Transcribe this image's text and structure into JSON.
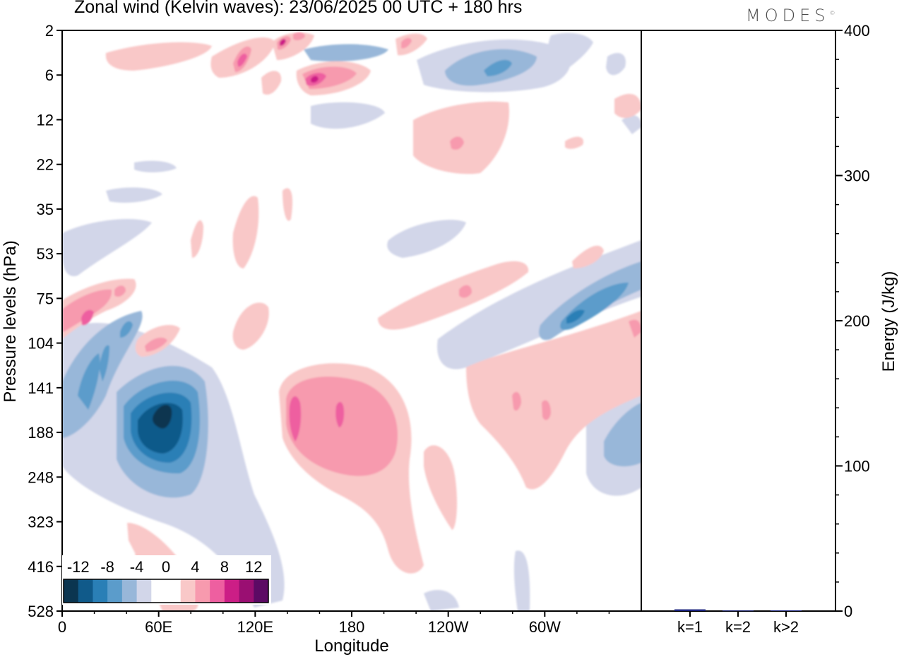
{
  "header": {
    "title": "Zonal wind (Kelvin waves):  23/06/2025  00 UTC  + 180 hrs",
    "brand": "MODES",
    "brand_mark": "©"
  },
  "chart_data": [
    {
      "type": "heatmap",
      "title": "Zonal wind (Kelvin waves):  23/06/2025  00 UTC  + 180 hrs",
      "xlabel": "Longitude",
      "ylabel": "Pressure levels (hPa)",
      "x_ticks": [
        "0",
        "60E",
        "120E",
        "180",
        "120W",
        "60W"
      ],
      "y_ticks": [
        "2",
        "6",
        "12",
        "22",
        "35",
        "53",
        "75",
        "104",
        "141",
        "188",
        "248",
        "323",
        "416",
        "528"
      ],
      "colorbar": {
        "labels": [
          "-12",
          "-8",
          "-4",
          "0",
          "4",
          "8",
          "12"
        ],
        "colors": [
          "#0b3550",
          "#105a8a",
          "#2a7fb6",
          "#5b9ccb",
          "#98b7d9",
          "#d2d6e9",
          "#ffffff",
          "#ffffff",
          "#f9c8c8",
          "#f79aae",
          "#ee5fa0",
          "#cc1e86",
          "#9a0f72",
          "#5c0a64"
        ]
      },
      "features": [
        {
          "kind": "negative",
          "level": "min",
          "label": "strong easterly core near 60E, 141-188 hPa"
        },
        {
          "kind": "positive",
          "level": "moderate",
          "label": "westerly anomaly 150E-160W, 141-248 hPa"
        },
        {
          "kind": "positive",
          "level": "moderate",
          "label": "westerly anomaly near 0-20E, 75-104 hPa"
        },
        {
          "kind": "negative",
          "level": "moderate",
          "label": "easterly tilt 50W-20W, 75-104 hPa"
        },
        {
          "kind": "positive",
          "level": "moderate",
          "label": "westerly band 140E-170E, 6 hPa"
        },
        {
          "kind": "negative",
          "level": "moderate",
          "label": "easterly band 100W-80W, 6 hPa"
        }
      ]
    },
    {
      "type": "bar",
      "categories": [
        "k=1",
        "k=2",
        "k>2"
      ],
      "values": [
        1.2,
        0.4,
        0.5
      ],
      "ylabel": "Energy (J/kg)",
      "ylim": [
        0,
        400
      ],
      "y_ticks": [
        "0",
        "100",
        "200",
        "300",
        "400"
      ],
      "bar_color": "#1a237e"
    }
  ]
}
